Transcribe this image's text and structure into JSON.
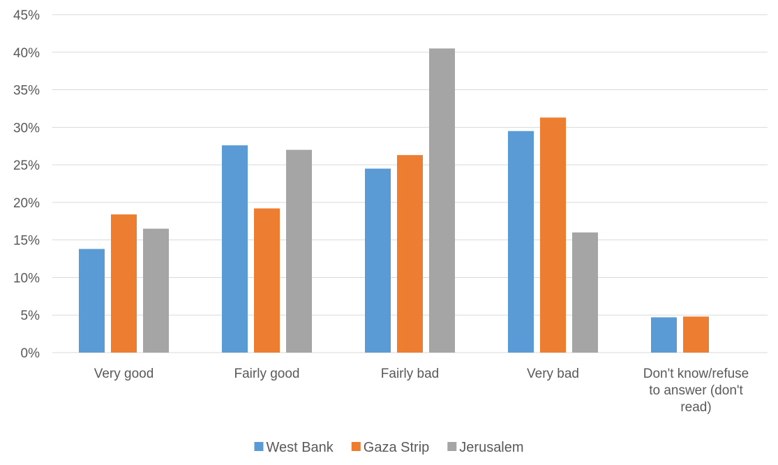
{
  "chart_data": {
    "type": "bar",
    "title": "",
    "xlabel": "",
    "ylabel": "",
    "ylim": [
      0,
      45
    ],
    "y_ticks": [
      "0%",
      "5%",
      "10%",
      "15%",
      "20%",
      "25%",
      "30%",
      "35%",
      "40%",
      "45%"
    ],
    "grid": true,
    "legend_position": "bottom",
    "categories": [
      "Very good",
      "Fairly good",
      "Fairly bad",
      "Very bad",
      "Don't know/refuse to answer (don't read)"
    ],
    "category_lines": [
      [
        "Very good"
      ],
      [
        "Fairly good"
      ],
      [
        "Fairly bad"
      ],
      [
        "Very bad"
      ],
      [
        "Don't know/refuse",
        "to answer (don't",
        "read)"
      ]
    ],
    "series": [
      {
        "name": "West Bank",
        "color": "#5B9BD5",
        "values": [
          13.8,
          27.6,
          24.5,
          29.5,
          4.7
        ]
      },
      {
        "name": "Gaza Strip",
        "color": "#ED7D31",
        "values": [
          18.4,
          19.2,
          26.3,
          31.3,
          4.8
        ]
      },
      {
        "name": "Jerusalem",
        "color": "#A5A5A5",
        "values": [
          16.5,
          27.0,
          40.5,
          16.0,
          null
        ]
      }
    ]
  }
}
